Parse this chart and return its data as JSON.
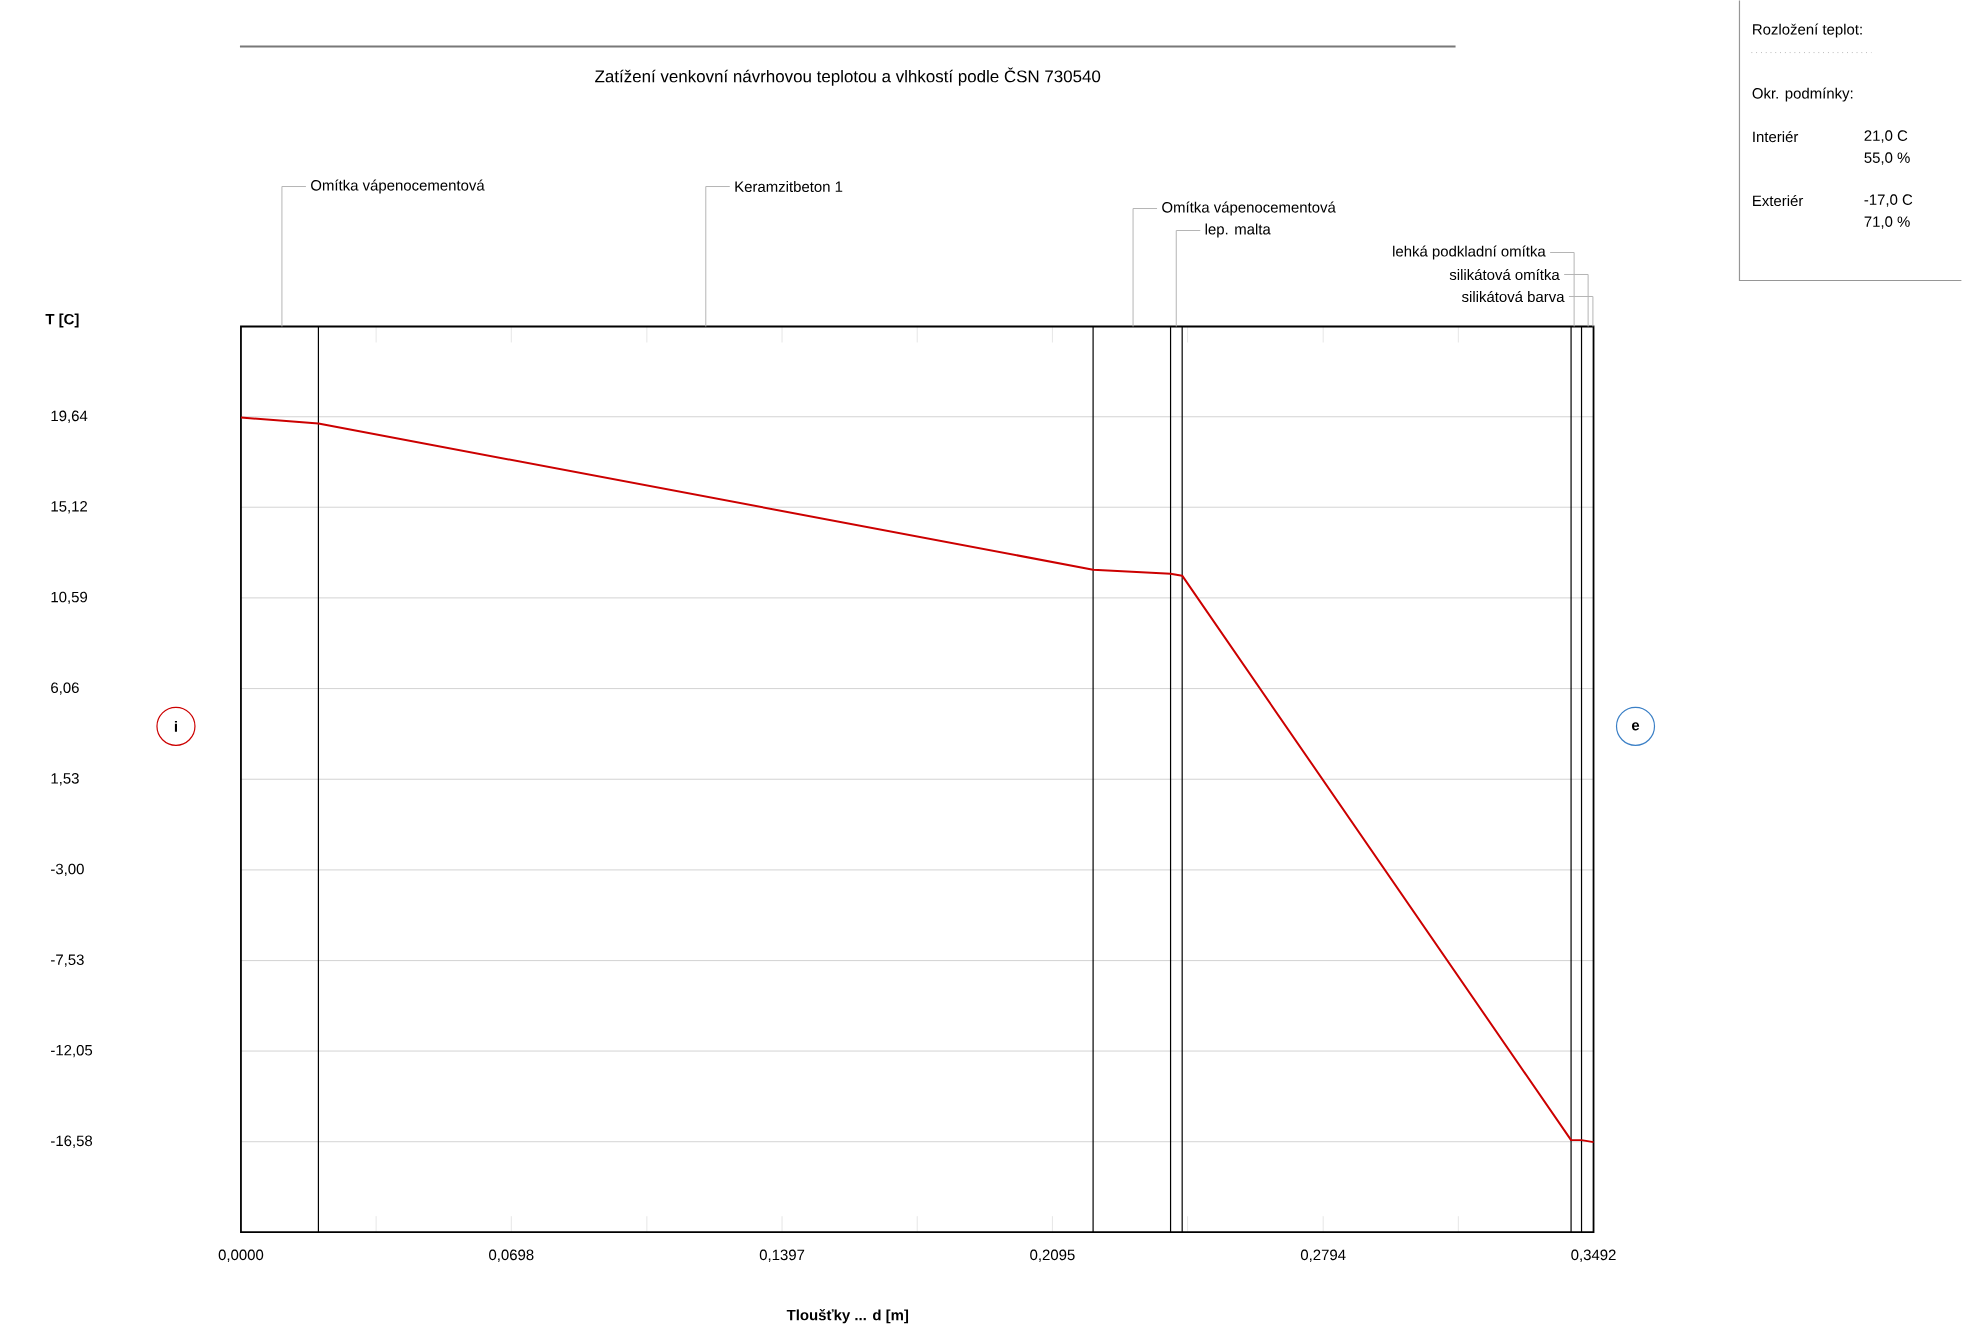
{
  "chart_data": {
    "type": "line",
    "title": "Zatížení venkovní návrhovou teplotou a vlhkostí podle ČSN 730540",
    "xlabel": "Tloušťky ... d [m]",
    "ylabel": "T [C]",
    "x": [
      0,
      0.02,
      0.22,
      0.24,
      0.243,
      0.3434,
      0.3461,
      0.3492
    ],
    "series": [
      {
        "color": "#cc0000",
        "values": [
          19.6,
          19.3,
          12.0,
          11.8,
          11.7,
          -16.5,
          -16.5,
          -16.6
        ]
      }
    ],
    "xlim": [
      0,
      0.3492
    ],
    "ylim": [
      -21.1,
      24.15
    ],
    "xticks": [
      {
        "value": 0,
        "label": "0,0000"
      },
      {
        "value": 0.0349,
        "label": null
      },
      {
        "value": 0.0698,
        "label": "0,0698"
      },
      {
        "value": 0.1048,
        "label": null
      },
      {
        "value": 0.1397,
        "label": "0,1397"
      },
      {
        "value": 0.1746,
        "label": null
      },
      {
        "value": 0.2095,
        "label": "0,2095"
      },
      {
        "value": 0.2444,
        "label": null
      },
      {
        "value": 0.2794,
        "label": "0,2794"
      },
      {
        "value": 0.3143,
        "label": null
      },
      {
        "value": 0.3492,
        "label": "0,3492"
      }
    ],
    "yticks": [
      {
        "value": 19.64,
        "label": "19,64"
      },
      {
        "value": 15.12,
        "label": "15,12"
      },
      {
        "value": 10.59,
        "label": "10,59"
      },
      {
        "value": 6.06,
        "label": "6,06"
      },
      {
        "value": 1.53,
        "label": "1,53"
      },
      {
        "value": -3.0,
        "label": "-3,00"
      },
      {
        "value": -7.53,
        "label": "-7,53"
      },
      {
        "value": -12.05,
        "label": "-12,05"
      },
      {
        "value": -16.58,
        "label": "-16,58"
      }
    ],
    "grid": "y",
    "line_style": "solid",
    "ref_lines": [
      {
        "axis": "x",
        "value": 0.02,
        "color": "#000000"
      },
      {
        "axis": "x",
        "value": 0.22,
        "color": "#000000"
      },
      {
        "axis": "x",
        "value": 0.24,
        "color": "#000000"
      },
      {
        "axis": "x",
        "value": 0.243,
        "color": "#000000"
      },
      {
        "axis": "x",
        "value": 0.3434,
        "color": "#000000"
      },
      {
        "axis": "x",
        "value": 0.3461,
        "color": "#000000"
      }
    ],
    "annotations": [
      "Omítka vápenocementová",
      "Keramzitbeton 1",
      "Omítka vápenocementová",
      "lep. malta",
      "lehká podkladní omítka",
      "silikátová omítka",
      "silikátová barva",
      "i",
      "e",
      "Rozložení teplot:",
      "Okr. podmínky:",
      "Interiér",
      "21,0 C",
      "55,0 %",
      "Exteriér",
      "-17,0 C",
      "71,0 %"
    ]
  }
}
